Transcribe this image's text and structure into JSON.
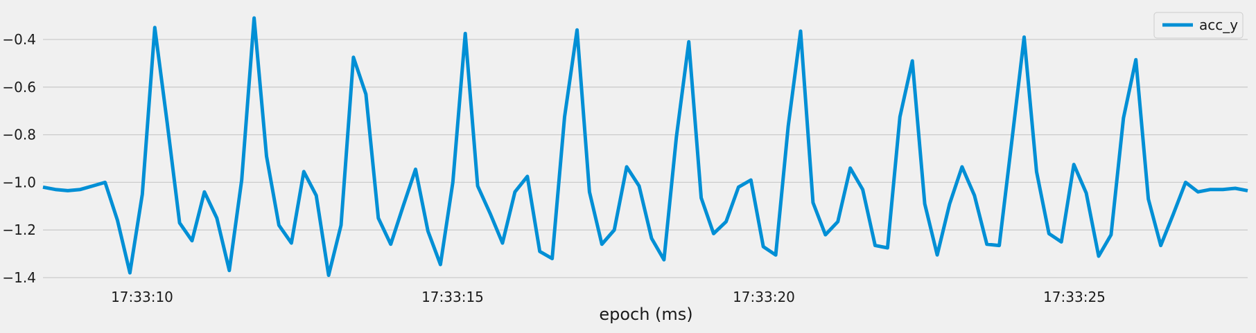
{
  "chart_data": {
    "type": "line",
    "title": "",
    "xlabel": "epoch (ms)",
    "ylabel": "",
    "x_ticks": [
      "17:33:10",
      "17:33:15",
      "17:33:20",
      "17:33:25"
    ],
    "y_ticks": [
      "−1.4",
      "−1.2",
      "−1.0",
      "−0.8",
      "−0.6",
      "−0.4"
    ],
    "y_tick_values": [
      -1.4,
      -1.2,
      -1.0,
      -0.8,
      -0.6,
      -0.4
    ],
    "ylim": [
      -1.41,
      -0.31
    ],
    "grid": "horizontal",
    "legend_position": "top-right",
    "series": [
      {
        "name": "acc_y",
        "color": "#008fd5",
        "values": [
          -1.02,
          -1.03,
          -1.035,
          -1.03,
          -1.015,
          -1.0,
          -1.16,
          -1.38,
          -1.05,
          -0.35,
          -0.75,
          -1.17,
          -1.245,
          -1.04,
          -1.15,
          -1.37,
          -0.99,
          -0.31,
          -0.89,
          -1.18,
          -1.255,
          -0.955,
          -1.055,
          -1.39,
          -1.18,
          -0.475,
          -0.63,
          -1.15,
          -1.26,
          -1.1,
          -0.945,
          -1.205,
          -1.345,
          -1.0,
          -0.375,
          -1.015,
          -1.13,
          -1.255,
          -1.04,
          -0.975,
          -1.29,
          -1.32,
          -0.725,
          -0.36,
          -1.04,
          -1.26,
          -1.2,
          -0.935,
          -1.015,
          -1.235,
          -1.325,
          -0.81,
          -0.41,
          -1.065,
          -1.215,
          -1.165,
          -1.02,
          -0.99,
          -1.27,
          -1.305,
          -0.765,
          -0.365,
          -1.085,
          -1.22,
          -1.165,
          -0.94,
          -1.03,
          -1.265,
          -1.275,
          -0.725,
          -0.49,
          -1.09,
          -1.305,
          -1.09,
          -0.935,
          -1.055,
          -1.26,
          -1.265,
          -0.83,
          -0.39,
          -0.955,
          -1.215,
          -1.25,
          -0.925,
          -1.045,
          -1.31,
          -1.22,
          -0.73,
          -0.485,
          -1.07,
          -1.265,
          -1.135,
          -1.0,
          -1.04,
          -1.03,
          -1.03,
          -1.025,
          -1.035
        ]
      }
    ]
  }
}
